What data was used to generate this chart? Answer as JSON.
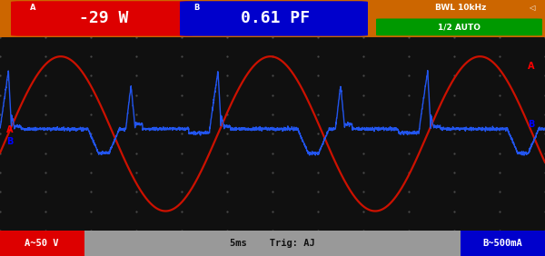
{
  "bg_color": "#101010",
  "header_bg": "#cc6600",
  "header_red_bg": "#dd0000",
  "header_blue_bg": "#0000cc",
  "header_green_bg": "#009900",
  "footer_gray": "#999999",
  "display_a": "-29 W",
  "display_b": "0.61 PF",
  "bwl_top": "BWL 10kHz",
  "bwl_bot": "1/2 AUTO",
  "footer_a": "A~50 V",
  "footer_mid": "5ms    Trig: AJ",
  "footer_b": "B~500mA",
  "dot_color": "#555555",
  "voltage_color": "#cc1100",
  "current_color": "#2255ee",
  "voltage_amplitude": 0.8,
  "voltage_phase": -0.25,
  "n_cycles": 2.6,
  "current_spike_amp": 0.6,
  "current_flat": 0.05,
  "current_neg": -0.2
}
